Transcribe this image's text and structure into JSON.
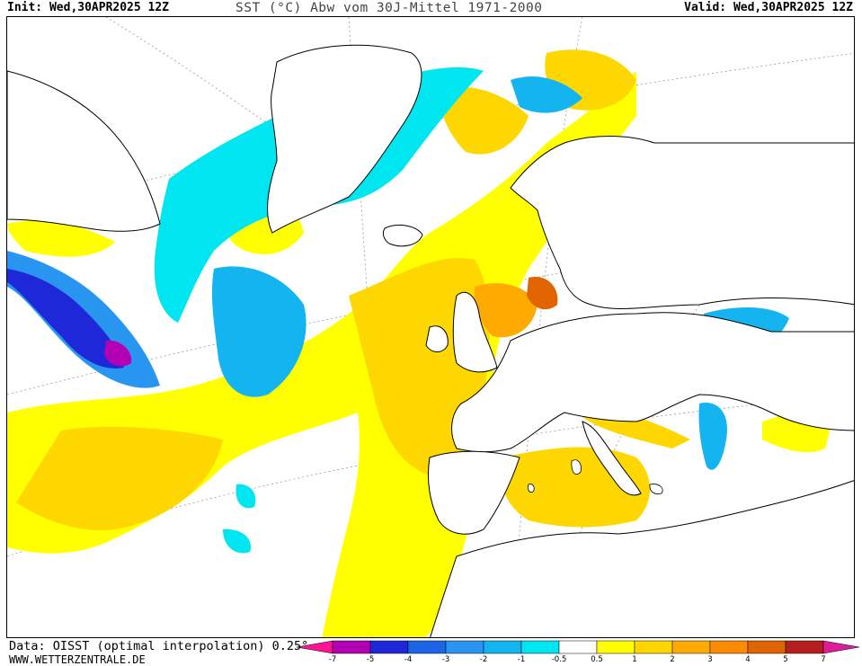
{
  "header": {
    "init": "Init: Wed,30APR2025 12Z",
    "title": "SST (°C) Abw vom 30J-Mittel 1971-2000",
    "valid": "Valid: Wed,30APR2025 12Z"
  },
  "footer": {
    "data_source": "Data: OISST (optimal interpolation) 0.25°",
    "website": "WWW.WETTERZENTRALE.DE"
  },
  "legend": {
    "labels": [
      "-7",
      "-5",
      "-4",
      "-3",
      "-2",
      "-1",
      "-0.5",
      "0.5",
      "1",
      "2",
      "3",
      "4",
      "5",
      "7"
    ],
    "colors": {
      "below_-7": "#ff1493",
      "-7_-5": "#b400b4",
      "-5_-4": "#1e28d8",
      "-4_-3": "#1e64e6",
      "-3_-2": "#2896f0",
      "-2_-1": "#14b4f0",
      "-1_-0.5": "#00e6f0",
      "-0.5_0.5": "#ffffff",
      "0.5_1": "#ffff00",
      "1_2": "#ffd700",
      "2_3": "#ffaa00",
      "3_4": "#ff8c00",
      "4_5": "#e06400",
      "5_7": "#b41e1e",
      "above_7": "#dc1e96"
    }
  }
}
